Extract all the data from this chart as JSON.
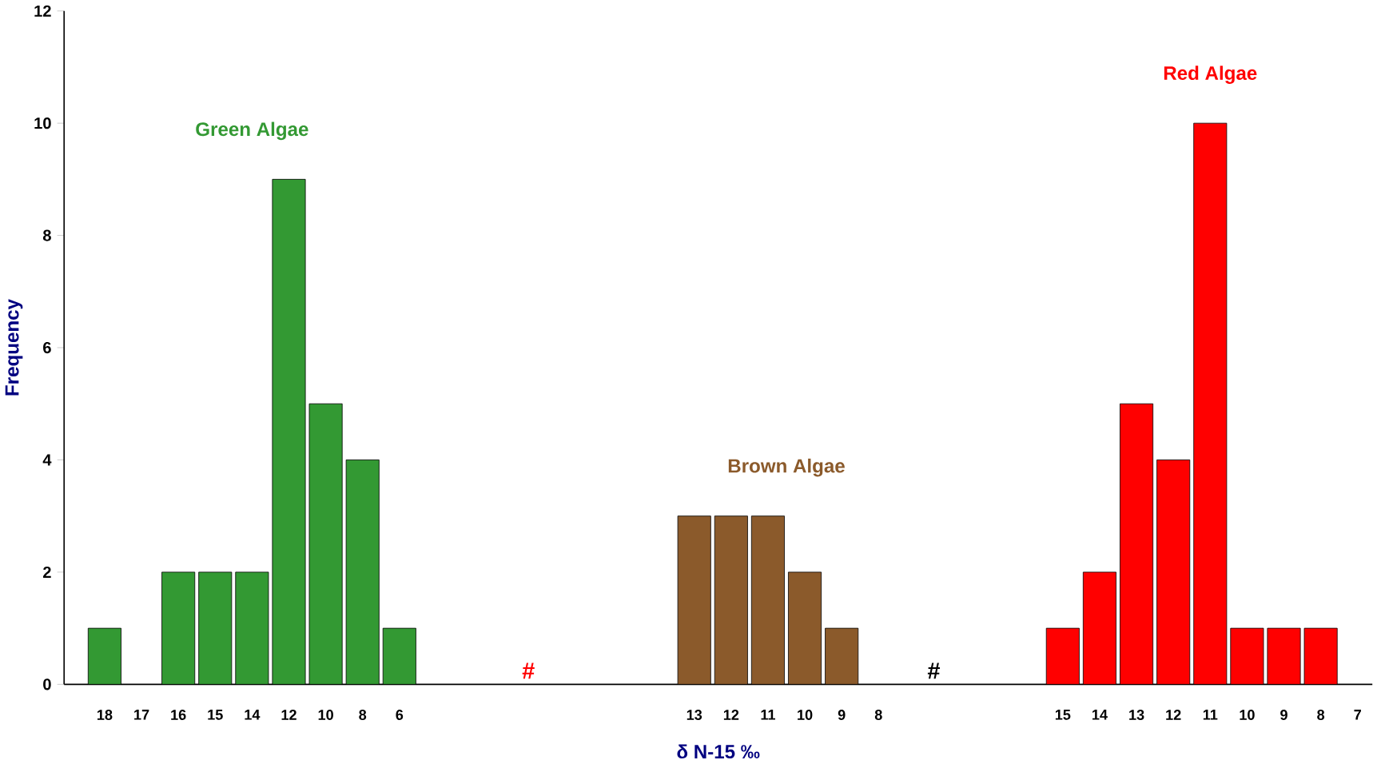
{
  "chart_data": {
    "type": "bar",
    "xlabel": "δ N-15 ‰",
    "ylabel": "Frequency",
    "categories": [
      "18",
      "17",
      "16",
      "15",
      "14",
      "12",
      "10",
      "8",
      "6",
      null,
      null,
      null,
      null,
      null,
      null,
      null,
      "13",
      "12",
      "11",
      "10",
      "9",
      "8",
      null,
      null,
      null,
      null,
      "15",
      "14",
      "13",
      "12",
      "11",
      "10",
      "9",
      "8",
      "7"
    ],
    "series": [
      {
        "name": "Green Algae",
        "color": "#339933",
        "values": [
          1,
          0,
          2,
          2,
          2,
          9,
          5,
          4,
          1,
          null,
          null,
          null,
          null,
          null,
          null,
          null,
          null,
          null,
          null,
          null,
          null,
          null,
          null,
          null,
          null,
          null,
          null,
          null,
          null,
          null,
          null,
          null,
          null,
          null,
          null
        ]
      },
      {
        "name": "Brown Algae",
        "color": "#8b5a2b",
        "values": [
          null,
          null,
          null,
          null,
          null,
          null,
          null,
          null,
          null,
          null,
          null,
          null,
          null,
          null,
          null,
          null,
          3,
          3,
          3,
          2,
          1,
          0,
          null,
          null,
          null,
          null,
          null,
          null,
          null,
          null,
          null,
          null,
          null,
          null,
          null
        ]
      },
      {
        "name": "Red Algae",
        "color": "#ff0000",
        "values": [
          null,
          null,
          null,
          null,
          null,
          null,
          null,
          null,
          null,
          null,
          null,
          null,
          null,
          null,
          null,
          null,
          null,
          null,
          null,
          null,
          null,
          null,
          null,
          null,
          null,
          null,
          1,
          2,
          5,
          4,
          10,
          1,
          1,
          1,
          0
        ]
      }
    ],
    "ylim": [
      0,
      12
    ],
    "yticks": [
      0,
      2,
      4,
      6,
      8,
      10,
      12
    ],
    "grid": false,
    "legend": false,
    "annotations": [
      "#",
      "#"
    ]
  }
}
